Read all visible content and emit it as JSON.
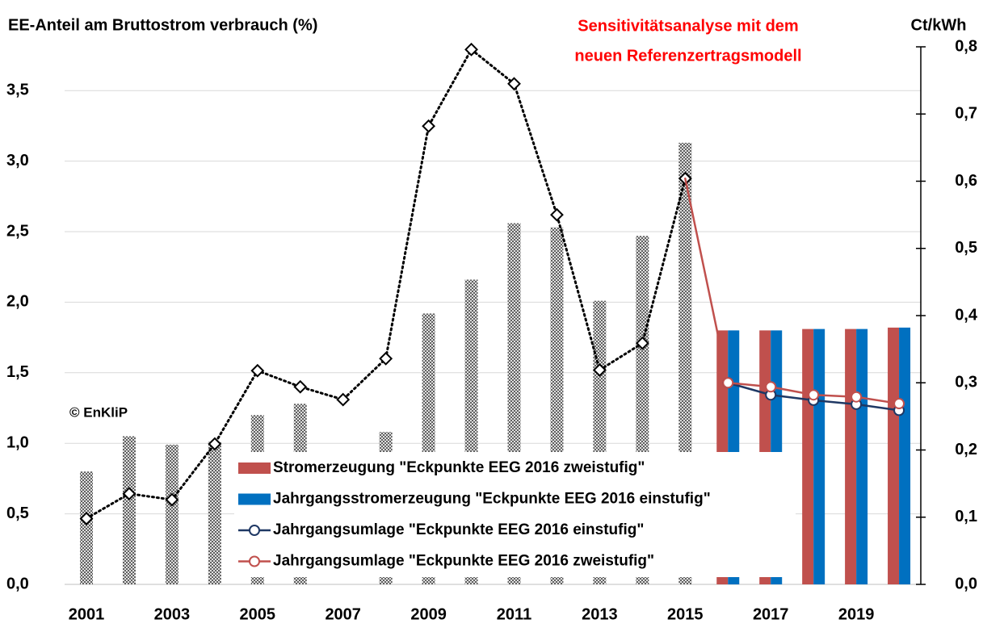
{
  "chart_data": {
    "type": "bar",
    "title": "EE-Anteil am Bruttostrom verbrauch (%)",
    "y2label": "Ct/kWh",
    "annotations": [
      "Sensitivitätsanalyse mit dem",
      "neuen Referenzertragsmodell",
      "© EnKliP"
    ],
    "categories": [
      "2001",
      null,
      "2003",
      null,
      "2005",
      null,
      "2007",
      null,
      "2009",
      null,
      "2011",
      null,
      "2013",
      null,
      "2015",
      null,
      "2017",
      null,
      "2019",
      null
    ],
    "ylim": [
      0,
      3.81
    ],
    "yticks": [
      {
        "value": 0,
        "label": "0,0"
      },
      {
        "value": 0.5,
        "label": "0,5"
      },
      {
        "value": 1,
        "label": "1,0"
      },
      {
        "value": 1.5,
        "label": "1,5"
      },
      {
        "value": 2,
        "label": "2,0"
      },
      {
        "value": 2.5,
        "label": "2,5"
      },
      {
        "value": 3,
        "label": "3,0"
      },
      {
        "value": 3.5,
        "label": "3,5"
      }
    ],
    "y2lim": [
      0,
      0.8
    ],
    "y2ticks": [
      {
        "value": 0,
        "label": "0,0"
      },
      {
        "value": 0.1,
        "label": "0,1"
      },
      {
        "value": 0.2,
        "label": "0,2"
      },
      {
        "value": 0.3,
        "label": "0,3"
      },
      {
        "value": 0.4,
        "label": "0,4"
      },
      {
        "value": 0.5,
        "label": "0,5"
      },
      {
        "value": 0.6,
        "label": "0,6"
      },
      {
        "value": 0.7,
        "label": "0,7"
      },
      {
        "value": 0.8,
        "label": "0,8"
      }
    ],
    "grid": true,
    "series": [
      {
        "type": "bar",
        "color": "#808080",
        "pattern": "hatched",
        "slot": "center",
        "values": [
          0.8,
          1.05,
          0.99,
          1.01,
          1.2,
          1.28,
          null,
          1.08,
          1.92,
          2.16,
          2.56,
          2.53,
          2.01,
          2.47,
          3.13,
          null,
          null,
          null,
          null,
          null
        ]
      },
      {
        "type": "line",
        "color": "#000000",
        "dash": "dotted",
        "marker": "diamond",
        "axis": "y2",
        "values": [
          0.098,
          0.135,
          0.126,
          0.209,
          0.318,
          0.294,
          0.275,
          0.336,
          0.682,
          0.796,
          0.745,
          0.55,
          0.319,
          0.359,
          0.604,
          null,
          null,
          null,
          null,
          null
        ]
      },
      {
        "name": "Stromerzeugung \"Eckpunkte EEG 2016 zweistufig\"",
        "type": "bar",
        "color": "#c0504d",
        "slot": "left",
        "values": [
          null,
          null,
          null,
          null,
          null,
          null,
          null,
          null,
          null,
          null,
          null,
          null,
          null,
          null,
          null,
          1.8,
          1.8,
          1.81,
          1.81,
          1.82
        ]
      },
      {
        "name": "Jahrgangsstromerzeugung \"Eckpunkte EEG 2016 einstufig\"",
        "type": "bar",
        "color": "#0070c0",
        "slot": "right",
        "values": [
          null,
          null,
          null,
          null,
          null,
          null,
          null,
          null,
          null,
          null,
          null,
          null,
          null,
          null,
          null,
          1.8,
          1.8,
          1.81,
          1.81,
          1.82
        ]
      },
      {
        "name": "Jahrgangsumlage  \"Eckpunkte EEG 2016 einstufig\"",
        "type": "line",
        "color": "#1f3864",
        "marker": "circle",
        "axis": "y2",
        "values": [
          null,
          null,
          null,
          null,
          null,
          null,
          null,
          null,
          null,
          null,
          null,
          null,
          null,
          null,
          null,
          0.3,
          0.282,
          0.274,
          0.268,
          0.259
        ]
      },
      {
        "name": "Jahrgangsumlage \"Eckpunkte EEG 2016 zweistufig\"",
        "type": "line",
        "color": "#c0504d",
        "marker": "circle",
        "axis": "y2",
        "values": [
          null,
          null,
          null,
          null,
          null,
          null,
          null,
          null,
          null,
          null,
          null,
          null,
          null,
          null,
          0.604,
          0.3,
          0.294,
          0.282,
          0.279,
          0.269
        ]
      }
    ]
  }
}
